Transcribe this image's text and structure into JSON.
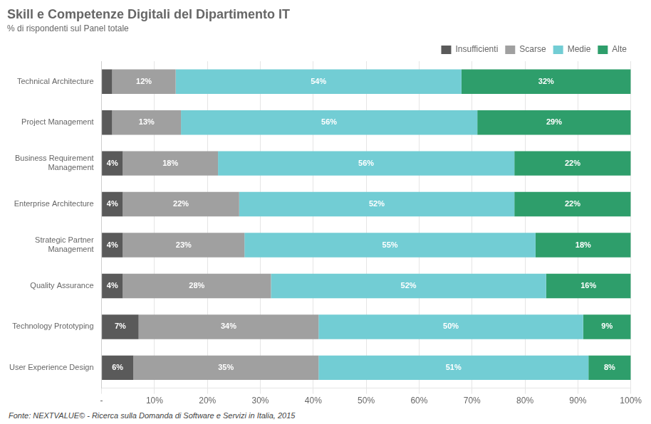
{
  "chart_data": {
    "type": "bar",
    "orientation": "horizontal",
    "stacked": true,
    "title": "Skill e Competenze Digitali del Dipartimento IT",
    "subtitle": "% di rispondenti sul Panel totale",
    "footnote": "Fonte: NEXTVALUE© - Ricerca sulla Domanda di Software e Servizi in Italia, 2015",
    "categories": [
      "Technical Architecture",
      "Project Management",
      "Business Requirement\nManagement",
      "Enterprise Architecture",
      "Strategic Partner\nManagement",
      "Quality Assurance",
      "Technology Prototyping",
      "User Experience Design"
    ],
    "series": [
      {
        "name": "Insufficienti",
        "color": "#5a5a5a",
        "values": [
          2,
          2,
          4,
          4,
          4,
          4,
          7,
          6
        ],
        "value_labels": [
          null,
          null,
          "4%",
          "4%",
          "4%",
          "4%",
          "7%",
          "6%"
        ]
      },
      {
        "name": "Scarse",
        "color": "#a0a0a0",
        "values": [
          12,
          13,
          18,
          22,
          23,
          28,
          34,
          35
        ],
        "value_labels": [
          "12%",
          "13%",
          "18%",
          "22%",
          "23%",
          "28%",
          "34%",
          "35%"
        ]
      },
      {
        "name": "Medie",
        "color": "#72cdd4",
        "values": [
          54,
          56,
          56,
          52,
          55,
          52,
          50,
          51
        ],
        "value_labels": [
          "54%",
          "56%",
          "56%",
          "52%",
          "55%",
          "52%",
          "50%",
          "51%"
        ]
      },
      {
        "name": "Alte",
        "color": "#2e9e6b",
        "values": [
          32,
          29,
          22,
          22,
          18,
          16,
          9,
          8
        ],
        "value_labels": [
          "32%",
          "29%",
          "22%",
          "22%",
          "18%",
          "16%",
          "9%",
          "8%"
        ]
      }
    ],
    "xlim": [
      0,
      100
    ],
    "xticks": [
      {
        "value": 0,
        "label": "-"
      },
      {
        "value": 10,
        "label": "10%"
      },
      {
        "value": 20,
        "label": "20%"
      },
      {
        "value": 30,
        "label": "30%"
      },
      {
        "value": 40,
        "label": "40%"
      },
      {
        "value": 50,
        "label": "50%"
      },
      {
        "value": 60,
        "label": "60%"
      },
      {
        "value": 70,
        "label": "70%"
      },
      {
        "value": 80,
        "label": "80%"
      },
      {
        "value": 90,
        "label": "90%"
      },
      {
        "value": 100,
        "label": "100%"
      }
    ],
    "grid": true,
    "legend": "upper right",
    "data_labels": true
  }
}
